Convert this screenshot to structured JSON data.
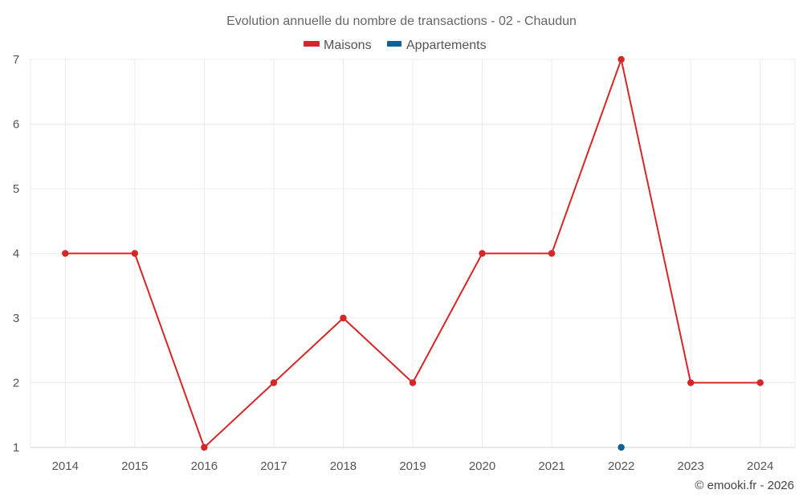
{
  "chart_data": {
    "type": "line",
    "title": "Evolution annuelle du nombre de transactions - 02 - Chaudun",
    "x": [
      2014,
      2015,
      2016,
      2017,
      2018,
      2019,
      2020,
      2021,
      2022,
      2023,
      2024
    ],
    "x_tick_labels": [
      "2014",
      "2015",
      "2016",
      "2017",
      "2018",
      "2019",
      "2020",
      "2021",
      "2022",
      "2023",
      "2024"
    ],
    "y_tick_labels": [
      "1",
      "2",
      "3",
      "4",
      "5",
      "6",
      "7"
    ],
    "ylim": [
      1,
      7
    ],
    "grid": true,
    "legend_position": "top-center",
    "series": [
      {
        "name": "Maisons",
        "color": "#d62728",
        "values": [
          4,
          4,
          1,
          2,
          3,
          2,
          4,
          4,
          7,
          2,
          2
        ]
      },
      {
        "name": "Appartements",
        "color": "#0f5f99",
        "values": [
          null,
          null,
          null,
          null,
          null,
          null,
          null,
          null,
          1,
          null,
          null
        ]
      }
    ]
  },
  "credit": "© emooki.fr - 2026"
}
